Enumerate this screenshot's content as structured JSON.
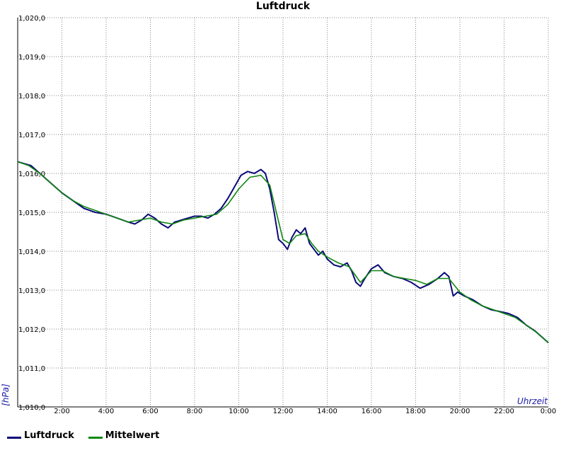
{
  "chart_data": {
    "type": "line",
    "title": "Luftdruck",
    "xlabel": "Uhrzeit",
    "ylabel": "[hPa]",
    "xlim": [
      0,
      24
    ],
    "ylim": [
      1010.0,
      1020.0
    ],
    "x_ticks": [
      "",
      "2:00",
      "4:00",
      "6:00",
      "8:00",
      "10:00",
      "12:00",
      "14:00",
      "16:00",
      "18:00",
      "20:00",
      "22:00",
      "0:00"
    ],
    "y_ticks": [
      "1,010,0",
      "1,011,0",
      "1,012,0",
      "1,013,0",
      "1,014,0",
      "1,015,0",
      "1,016,0",
      "1,017,0",
      "1,018,0",
      "1,019,0",
      "1,020,0"
    ],
    "grid": true,
    "legend_position": "bottom-left",
    "series": [
      {
        "name": "Luftdruck",
        "color": "#0a0a78",
        "x": [
          0.0,
          0.3,
          0.6,
          1.0,
          1.3,
          1.6,
          2.0,
          2.5,
          3.0,
          3.5,
          4.0,
          4.5,
          5.0,
          5.3,
          5.6,
          5.9,
          6.2,
          6.5,
          6.8,
          7.1,
          7.4,
          7.7,
          8.0,
          8.3,
          8.6,
          8.9,
          9.2,
          9.5,
          9.8,
          10.1,
          10.4,
          10.7,
          11.0,
          11.2,
          11.4,
          11.6,
          11.8,
          12.0,
          12.2,
          12.4,
          12.6,
          12.8,
          13.0,
          13.2,
          13.4,
          13.6,
          13.8,
          14.0,
          14.3,
          14.6,
          14.9,
          15.1,
          15.3,
          15.5,
          15.7,
          16.0,
          16.3,
          16.6,
          17.0,
          17.4,
          17.8,
          18.2,
          18.6,
          19.0,
          19.3,
          19.5,
          19.7,
          19.9,
          20.2,
          20.6,
          21.0,
          21.4,
          21.8,
          22.2,
          22.6,
          23.0,
          23.4,
          23.8,
          24.0
        ],
        "y": [
          1016.3,
          1016.25,
          1016.2,
          1016.0,
          1015.85,
          1015.7,
          1015.5,
          1015.3,
          1015.1,
          1015.0,
          1014.95,
          1014.85,
          1014.75,
          1014.7,
          1014.8,
          1014.95,
          1014.85,
          1014.7,
          1014.6,
          1014.75,
          1014.8,
          1014.85,
          1014.9,
          1014.9,
          1014.85,
          1014.95,
          1015.1,
          1015.35,
          1015.65,
          1015.95,
          1016.05,
          1016.0,
          1016.1,
          1016.0,
          1015.6,
          1015.0,
          1014.3,
          1014.2,
          1014.05,
          1014.35,
          1014.55,
          1014.45,
          1014.6,
          1014.2,
          1014.05,
          1013.9,
          1014.0,
          1013.8,
          1013.65,
          1013.6,
          1013.7,
          1013.5,
          1013.2,
          1013.1,
          1013.3,
          1013.55,
          1013.65,
          1013.45,
          1013.35,
          1013.3,
          1013.2,
          1013.05,
          1013.15,
          1013.3,
          1013.45,
          1013.35,
          1012.85,
          1012.95,
          1012.85,
          1012.75,
          1012.6,
          1012.5,
          1012.45,
          1012.4,
          1012.3,
          1012.1,
          1011.95,
          1011.75,
          1011.65
        ]
      },
      {
        "name": "Mittelwert",
        "color": "#118811",
        "x": [
          0.0,
          0.5,
          1.0,
          1.5,
          2.0,
          2.5,
          3.0,
          3.5,
          4.0,
          4.5,
          5.0,
          5.5,
          6.0,
          6.5,
          7.0,
          7.5,
          8.0,
          8.5,
          9.0,
          9.5,
          10.0,
          10.5,
          11.0,
          11.4,
          11.7,
          12.0,
          12.3,
          12.6,
          13.0,
          13.3,
          13.6,
          14.0,
          14.5,
          15.0,
          15.5,
          16.0,
          16.5,
          17.0,
          17.5,
          18.0,
          18.5,
          19.0,
          19.5,
          20.0,
          20.5,
          21.0,
          21.5,
          22.0,
          22.5,
          23.0,
          23.5,
          24.0
        ],
        "y": [
          1016.3,
          1016.2,
          1016.0,
          1015.75,
          1015.5,
          1015.3,
          1015.15,
          1015.05,
          1014.95,
          1014.85,
          1014.75,
          1014.8,
          1014.85,
          1014.75,
          1014.7,
          1014.8,
          1014.85,
          1014.9,
          1014.95,
          1015.2,
          1015.6,
          1015.9,
          1015.95,
          1015.7,
          1015.0,
          1014.3,
          1014.2,
          1014.4,
          1014.45,
          1014.2,
          1014.0,
          1013.85,
          1013.7,
          1013.6,
          1013.2,
          1013.5,
          1013.5,
          1013.35,
          1013.3,
          1013.25,
          1013.15,
          1013.3,
          1013.3,
          1012.95,
          1012.75,
          1012.6,
          1012.5,
          1012.4,
          1012.3,
          1012.1,
          1011.9,
          1011.65
        ]
      }
    ]
  }
}
